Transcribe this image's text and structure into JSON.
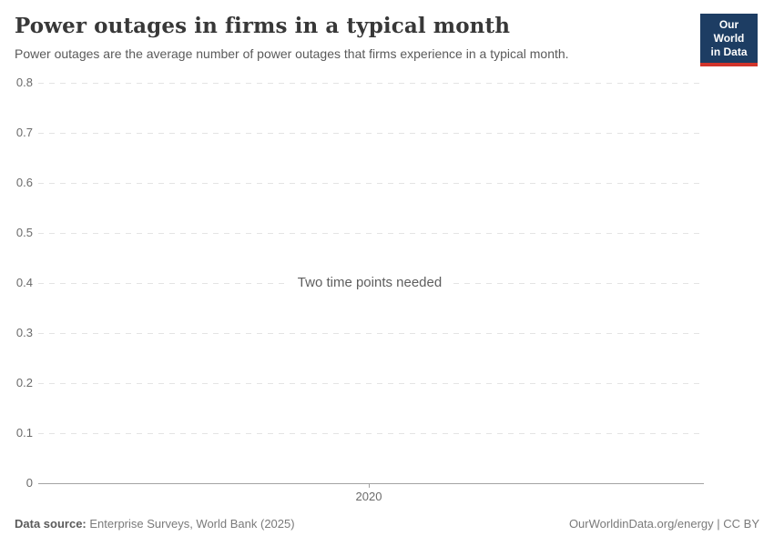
{
  "header": {
    "title": "Power outages in firms in a typical month",
    "subtitle": "Power outages are the average number of power outages that firms experience in a typical month.",
    "logo": {
      "line1": "Our World",
      "line2": "in Data",
      "background_color": "#1d3d63",
      "stripe_color": "#d1342b"
    }
  },
  "chart_data": {
    "type": "line",
    "title": "Power outages in firms in a typical month",
    "subtitle": "Power outages are the average number of power outages that firms experience in a typical month.",
    "xlabel": "",
    "ylabel": "",
    "ylim": [
      0,
      0.8
    ],
    "y_ticks": [
      0,
      0.1,
      0.2,
      0.3,
      0.4,
      0.5,
      0.6,
      0.7,
      0.8
    ],
    "x_ticks": [
      "2020"
    ],
    "series": [],
    "empty_message": "Two time points needed",
    "grid": true,
    "gridline_style": "dashed",
    "legend": "none"
  },
  "footer": {
    "source_label": "Data source:",
    "source_value": "Enterprise Surveys, World Bank (2025)",
    "credit": "OurWorldinData.org/energy | CC BY"
  },
  "colors": {
    "title_text": "#383838",
    "subtitle_text": "#5a5a5a",
    "tick_text": "#6b6b6b",
    "gridline": "#e4e4e4",
    "axis_line": "#a3a3a3",
    "footer_text": "#7a7a7a",
    "background": "#ffffff"
  }
}
